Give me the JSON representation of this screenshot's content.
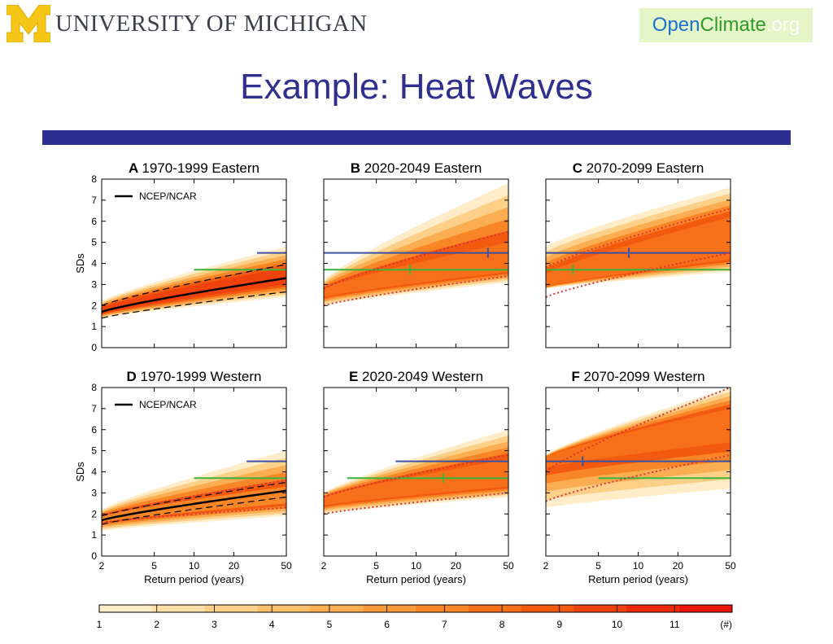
{
  "header": {
    "university_name": "UNIVERSITY OF MICHIGAN",
    "university_initial": "M",
    "partner_logo": {
      "part1": "Open",
      "part2": "Climate",
      "part3": ".org"
    }
  },
  "slide_title": "Example: Heat Waves",
  "colors": {
    "title_blue": "#2e2f8f",
    "bar_blue": "#2b3090",
    "maize": "#f5c518",
    "threshold_blue": "#3b52a0",
    "threshold_green": "#3cb43c",
    "dotted_red": "#d8343a",
    "colorbar": [
      "#ffecc8",
      "#fee0a8",
      "#fdd08a",
      "#fcbf6c",
      "#fbad52",
      "#fa9a3a",
      "#f88626",
      "#f57018",
      "#f25a10",
      "#ef420c",
      "#ec2a0a",
      "#e81508"
    ]
  },
  "chart_data": [
    {
      "type": "area",
      "letter": "A",
      "title": "1970-1999 Eastern",
      "ylabel": "SDs",
      "xlabel": "",
      "xscale": "log",
      "xlim": [
        2,
        50
      ],
      "ylim": [
        0,
        8
      ],
      "xticks": [
        "2",
        "5",
        "10",
        "20",
        "50"
      ],
      "yticks": [
        "0",
        "1",
        "2",
        "3",
        "4",
        "5",
        "6",
        "7",
        "8"
      ],
      "legend": "NCEP/NCAR",
      "legend_position": "top-left",
      "envelope": {
        "x": [
          2,
          50
        ],
        "low": [
          1.4,
          2.4
        ],
        "high": [
          2.2,
          4.8
        ]
      },
      "core": {
        "x": [
          2,
          50
        ],
        "low": [
          1.6,
          3.0
        ],
        "high": [
          1.9,
          3.8
        ],
        "color": "#ef420c"
      },
      "observed": {
        "x": [
          2,
          50
        ],
        "y": [
          1.7,
          3.3
        ]
      },
      "observed_bounds": {
        "x": [
          2,
          50
        ],
        "low": [
          1.4,
          2.65
        ],
        "high": [
          2.0,
          3.95
        ]
      },
      "dotted_lines": [],
      "blue_line": {
        "x": [
          30,
          50
        ],
        "y": 4.5,
        "marker_x": null
      },
      "green_line": {
        "x": [
          10,
          50
        ],
        "y": 3.7,
        "marker_x": null
      }
    },
    {
      "type": "area",
      "letter": "B",
      "title": "2020-2049 Eastern",
      "xlabel": "",
      "xscale": "log",
      "xlim": [
        2,
        50
      ],
      "ylim": [
        0,
        8
      ],
      "xticks": [
        "2",
        "5",
        "10",
        "20",
        "50"
      ],
      "envelope": {
        "x": [
          2,
          50
        ],
        "low": [
          2.0,
          3.1
        ],
        "high": [
          3.2,
          7.8
        ]
      },
      "core": {
        "x": [
          2,
          50
        ],
        "low": [
          2.4,
          3.6
        ],
        "high": [
          2.8,
          5.0
        ],
        "color": "#f57018"
      },
      "dotted_lines": [
        {
          "x": [
            2,
            50
          ],
          "y": [
            2.0,
            3.4
          ]
        },
        {
          "x": [
            2,
            50
          ],
          "y": [
            2.8,
            5.5
          ]
        }
      ],
      "blue_line": {
        "x": [
          2,
          50
        ],
        "y": 4.5,
        "marker_x": 35
      },
      "green_line": {
        "x": [
          2,
          50
        ],
        "y": 3.7,
        "marker_x": 9
      }
    },
    {
      "type": "area",
      "letter": "C",
      "title": "2070-2099 Eastern",
      "xlabel": "",
      "xscale": "log",
      "xlim": [
        2,
        50
      ],
      "ylim": [
        0,
        8
      ],
      "xticks": [
        "2",
        "5",
        "10",
        "20",
        "50"
      ],
      "envelope": {
        "x": [
          2,
          50
        ],
        "low": [
          2.8,
          3.6
        ],
        "high": [
          4.8,
          7.6
        ]
      },
      "core": {
        "x": [
          2,
          50
        ],
        "low": [
          2.9,
          4.2
        ],
        "high": [
          3.5,
          6.2
        ],
        "color": "#f57018"
      },
      "dotted_lines": [
        {
          "x": [
            2,
            50
          ],
          "y": [
            2.4,
            4.5
          ]
        },
        {
          "x": [
            2,
            50
          ],
          "y": [
            3.8,
            6.6
          ]
        }
      ],
      "blue_line": {
        "x": [
          2,
          50
        ],
        "y": 4.5,
        "marker_x": 8.5
      },
      "green_line": {
        "x": [
          2,
          50
        ],
        "y": 3.7,
        "marker_x": 3.2
      }
    },
    {
      "type": "area",
      "letter": "D",
      "title": "1970-1999 Western",
      "ylabel": "SDs",
      "xlabel": "Return period (years)",
      "xscale": "log",
      "xlim": [
        2,
        50
      ],
      "ylim": [
        0,
        8
      ],
      "xticks": [
        "2",
        "5",
        "10",
        "20",
        "50"
      ],
      "yticks": [
        "0",
        "1",
        "2",
        "3",
        "4",
        "5",
        "6",
        "7",
        "8"
      ],
      "legend": "NCEP/NCAR",
      "legend_position": "top-left",
      "envelope": {
        "x": [
          2,
          50
        ],
        "low": [
          1.2,
          1.9
        ],
        "high": [
          2.2,
          5.0
        ]
      },
      "core": {
        "x": [
          2,
          50
        ],
        "low": [
          1.6,
          2.5
        ],
        "high": [
          1.9,
          3.3
        ],
        "color": "#f88626"
      },
      "observed": {
        "x": [
          2,
          50
        ],
        "y": [
          1.7,
          3.1
        ]
      },
      "observed_bounds": {
        "x": [
          2,
          50
        ],
        "low": [
          1.5,
          2.8
        ],
        "high": [
          1.9,
          3.5
        ]
      },
      "dotted_lines": [
        {
          "x": [
            2,
            50
          ],
          "y": [
            1.6,
            2.3
          ]
        },
        {
          "x": [
            2,
            50
          ],
          "y": [
            1.9,
            3.6
          ]
        }
      ],
      "blue_line": {
        "x": [
          25,
          50
        ],
        "y": 4.5,
        "marker_x": null
      },
      "green_line": {
        "x": [
          10,
          50
        ],
        "y": 3.7,
        "marker_x": null
      }
    },
    {
      "type": "area",
      "letter": "E",
      "title": "2020-2049 Western",
      "xlabel": "Return period (years)",
      "xscale": "log",
      "xlim": [
        2,
        50
      ],
      "ylim": [
        0,
        8
      ],
      "xticks": [
        "2",
        "5",
        "10",
        "20",
        "50"
      ],
      "envelope": {
        "x": [
          2,
          50
        ],
        "low": [
          2.0,
          2.8
        ],
        "high": [
          3.0,
          6.0
        ]
      },
      "core": {
        "x": [
          2,
          50
        ],
        "low": [
          2.4,
          3.3
        ],
        "high": [
          2.8,
          4.6
        ],
        "color": "#f57018"
      },
      "dotted_lines": [
        {
          "x": [
            2,
            50
          ],
          "y": [
            2.0,
            3.0
          ]
        },
        {
          "x": [
            2,
            50
          ],
          "y": [
            2.8,
            4.8
          ]
        }
      ],
      "blue_line": {
        "x": [
          7,
          50
        ],
        "y": 4.5,
        "marker_x": null
      },
      "green_line": {
        "x": [
          3,
          50
        ],
        "y": 3.7,
        "marker_x": 16
      }
    },
    {
      "type": "area",
      "letter": "F",
      "title": "2070-2099 Western",
      "xlabel": "Return period (years)",
      "xscale": "log",
      "xlim": [
        2,
        50
      ],
      "ylim": [
        0,
        8
      ],
      "xticks": [
        "2",
        "5",
        "10",
        "20",
        "50"
      ],
      "envelope": {
        "x": [
          2,
          50
        ],
        "low": [
          2.3,
          3.2
        ],
        "high": [
          4.8,
          8.0
        ]
      },
      "core": {
        "x": [
          2,
          50
        ],
        "low": [
          4.2,
          5.4
        ],
        "high": [
          4.7,
          7.0
        ],
        "color": "#f57018"
      },
      "dotted_lines": [
        {
          "x": [
            2,
            50
          ],
          "y": [
            2.6,
            4.8
          ]
        },
        {
          "x": [
            2,
            50
          ],
          "y": [
            4.0,
            8.0
          ]
        }
      ],
      "blue_line": {
        "x": [
          2,
          50
        ],
        "y": 4.5,
        "marker_x": 3.8
      },
      "green_line": {
        "x": [
          5,
          50
        ],
        "y": 3.7,
        "marker_x": null
      }
    }
  ],
  "colorbar": {
    "labels": [
      "1",
      "2",
      "3",
      "4",
      "5",
      "6",
      "7",
      "8",
      "9",
      "10",
      "11",
      "(#)"
    ]
  }
}
